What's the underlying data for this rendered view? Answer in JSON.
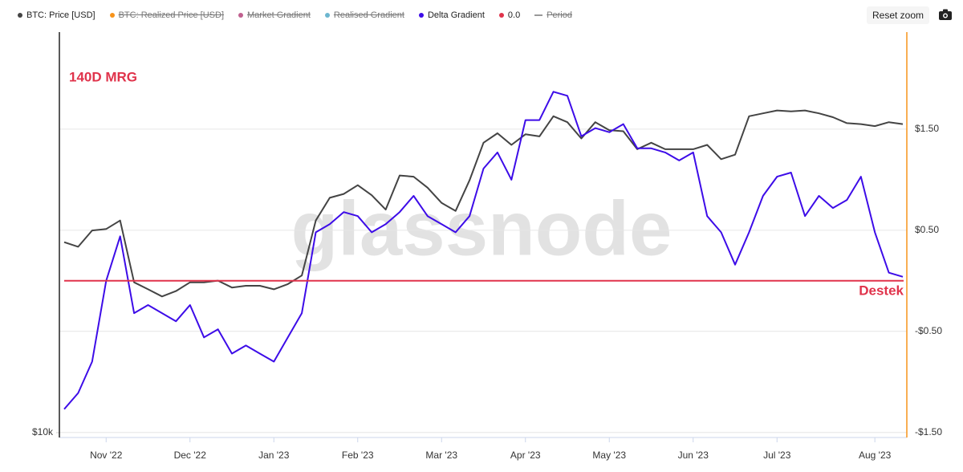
{
  "chart_data": {
    "type": "line",
    "legend": [
      {
        "name": "BTC: Price [USD]",
        "color": "#444444",
        "hidden": false
      },
      {
        "name": "BTC: Realized Price [USD]",
        "color": "#f7931a",
        "hidden": true
      },
      {
        "name": "Market Gradient",
        "color": "#c0608f",
        "hidden": true
      },
      {
        "name": "Realised Gradient",
        "color": "#6cb6cf",
        "hidden": true
      },
      {
        "name": "Delta Gradient",
        "color": "#3d0ce8",
        "hidden": false
      },
      {
        "name": "0.0",
        "color": "#e0334b",
        "hidden": false
      },
      {
        "name": "Period",
        "color": "#999999",
        "hidden": true
      }
    ],
    "reset_button": "Reset zoom",
    "watermark": "glassnode",
    "annotations": [
      {
        "text": "140D MRG",
        "color": "#e0334b"
      },
      {
        "text": "Destek",
        "color": "#e0334b"
      }
    ],
    "categories": [
      null,
      null,
      null,
      "Nov '22",
      null,
      null,
      null,
      null,
      null,
      "Dec '22",
      null,
      null,
      null,
      null,
      null,
      "Jan '23",
      null,
      null,
      null,
      null,
      null,
      "Feb '23",
      null,
      null,
      null,
      null,
      null,
      "Mar '23",
      null,
      null,
      null,
      null,
      null,
      "Apr '23",
      null,
      null,
      null,
      null,
      null,
      "May '23",
      null,
      null,
      null,
      null,
      null,
      "Jun '23",
      null,
      null,
      null,
      null,
      null,
      "Jul '23",
      null,
      null,
      null,
      null,
      null,
      null,
      "Aug '23",
      null,
      null
    ],
    "series": [
      {
        "name": "BTC: Price [USD]",
        "color": "#444444",
        "axis": "y",
        "values": [
          19500,
          19200,
          20300,
          20400,
          21000,
          17000,
          16600,
          16200,
          16500,
          17000,
          17000,
          17100,
          16700,
          16800,
          16800,
          16600,
          16900,
          17400,
          21000,
          22700,
          23000,
          23700,
          22900,
          21800,
          24500,
          24400,
          23500,
          22300,
          21700,
          24100,
          27400,
          28300,
          27200,
          28200,
          28000,
          30000,
          29400,
          27800,
          29400,
          28600,
          28500,
          26800,
          27400,
          26800,
          26800,
          26800,
          27200,
          25900,
          26300,
          30000,
          30300,
          30600,
          30500,
          30600,
          30300,
          29900,
          29300,
          29200,
          29000,
          29400,
          29200
        ]
      },
      {
        "name": "Delta Gradient",
        "color": "#3d0ce8",
        "axis": "y2",
        "values": [
          -1.27,
          -1.11,
          -0.8,
          0,
          0.44,
          -0.32,
          -0.24,
          -0.32,
          -0.4,
          -0.24,
          -0.56,
          -0.48,
          -0.72,
          -0.64,
          -0.72,
          -0.8,
          -0.56,
          -0.32,
          0.48,
          0.56,
          0.68,
          0.64,
          0.48,
          0.56,
          0.68,
          0.84,
          0.64,
          0.56,
          0.48,
          0.64,
          1.11,
          1.27,
          1.0,
          1.59,
          1.59,
          1.87,
          1.83,
          1.43,
          1.51,
          1.47,
          1.55,
          1.31,
          1.31,
          1.27,
          1.19,
          1.27,
          0.64,
          0.48,
          0.16,
          0.48,
          0.84,
          1.03,
          1.07,
          0.64,
          0.84,
          0.72,
          0.8,
          1.03,
          0.48,
          0.08,
          0.04
        ]
      }
    ],
    "hline": {
      "name": "0.0",
      "value": 0,
      "axis": "y2",
      "color": "#e0334b"
    },
    "ylog": true,
    "ylim": [
      10000,
      40000
    ],
    "yticks": [
      {
        "value": 10000,
        "label": "$10k"
      }
    ],
    "y2lim": [
      -1.55,
      2.46
    ],
    "y2ticks": [
      {
        "value": -1.5,
        "label": "-$1.50"
      },
      {
        "value": -0.5,
        "label": "-$0.50"
      },
      {
        "value": 0.5,
        "label": "$0.50"
      },
      {
        "value": 1.5,
        "label": "$1.50"
      }
    ],
    "grid": true
  }
}
